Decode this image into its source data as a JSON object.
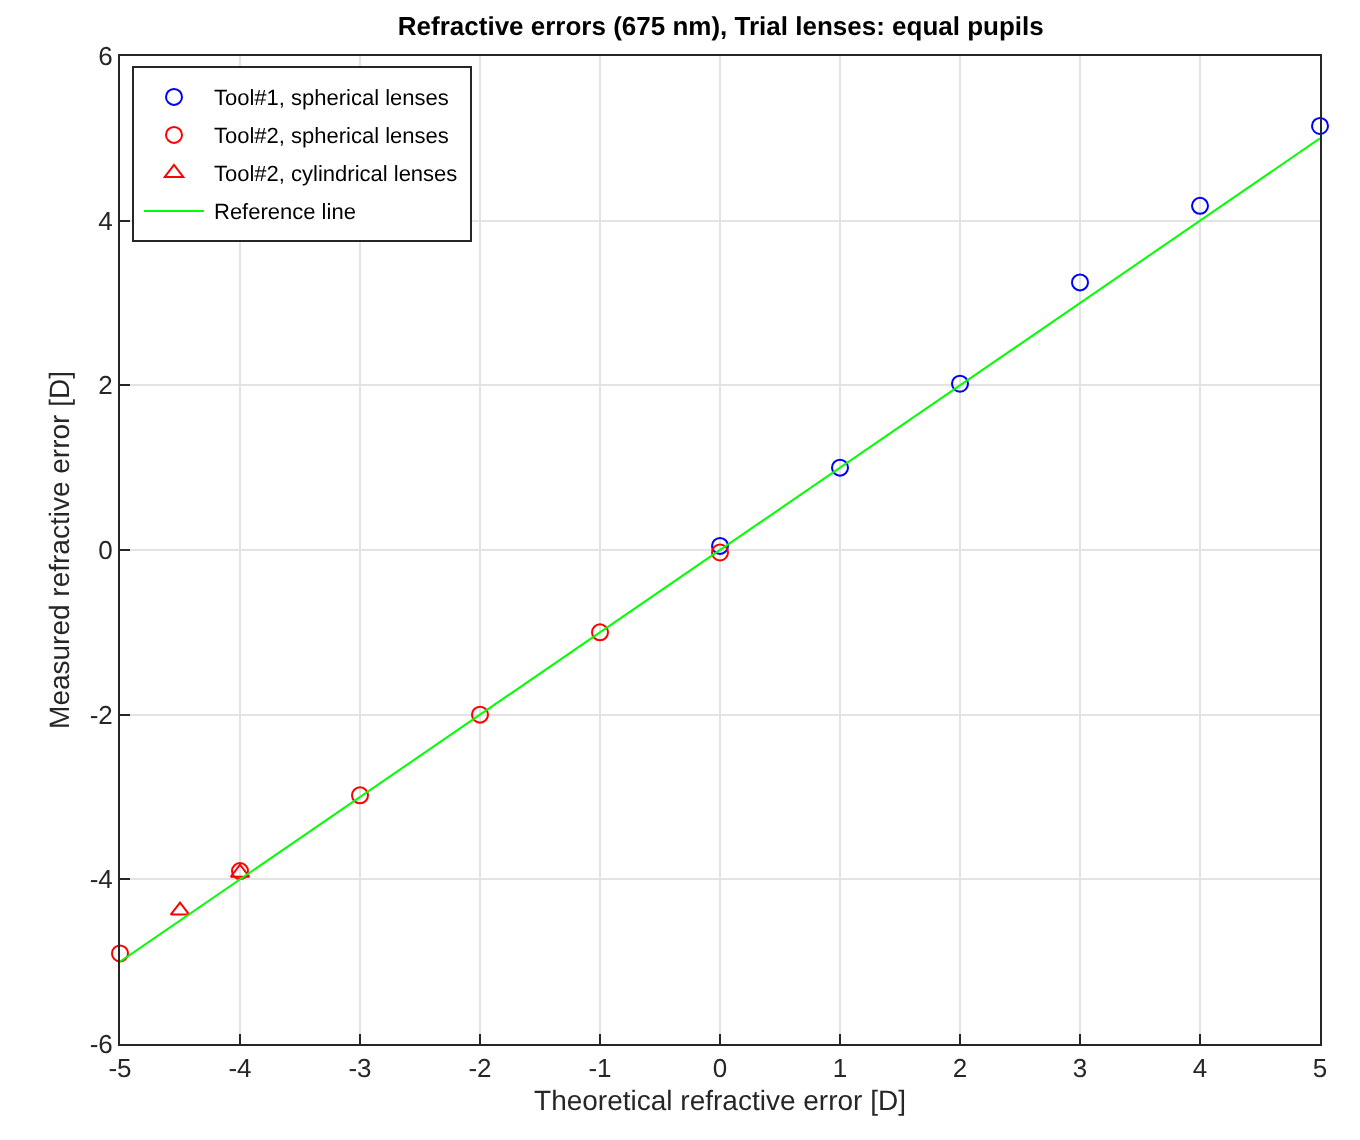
{
  "chart_data": {
    "type": "scatter",
    "title": "Refractive errors (675 nm), Trial lenses: equal pupils",
    "xlabel": "Theoretical refractive error [D]",
    "ylabel": "Measured refractive error [D]",
    "series": [
      {
        "name": "Tool#1, spherical lenses",
        "color": "#0000ff",
        "marker": "circle",
        "x": [
          0,
          1,
          2,
          3,
          4,
          5
        ],
        "values": [
          0.05,
          1.0,
          2.02,
          3.25,
          4.18,
          5.15
        ]
      },
      {
        "name": "Tool#2, spherical lenses",
        "color": "#ff0000",
        "marker": "circle",
        "x": [
          -5,
          -4,
          -3,
          -2,
          -1,
          0
        ],
        "values": [
          -4.9,
          -3.9,
          -2.98,
          -2.0,
          -1.0,
          -0.03
        ]
      },
      {
        "name": "Tool#2, cylindrical lenses",
        "color": "#ff0000",
        "marker": "triangle",
        "x": [
          -4.5,
          -4
        ],
        "values": [
          -4.38,
          -3.92
        ]
      },
      {
        "name": "Reference line",
        "color": "#00ff00",
        "type": "line",
        "marker": "none",
        "x": [
          -5,
          5
        ],
        "values": [
          -5,
          5
        ]
      }
    ],
    "xlim": [
      -5,
      5
    ],
    "xticks": [
      -5,
      -4,
      -3,
      -2,
      -1,
      0,
      1,
      2,
      3,
      4,
      5
    ],
    "ylim": [
      -6,
      6
    ],
    "yticks": [
      -6,
      -4,
      -2,
      0,
      2,
      4,
      6
    ],
    "grid": true,
    "legend": "top left"
  }
}
